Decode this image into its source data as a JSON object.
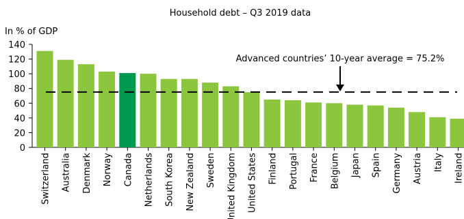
{
  "chart_data": {
    "type": "bar",
    "title": "Household debt – Q3 2019 data",
    "ylabel": "In % of GDP",
    "xlabel": "",
    "ylim": [
      0,
      140
    ],
    "yticks": [
      "0",
      "20",
      "40",
      "60",
      "80",
      "100",
      "120",
      "140"
    ],
    "grid": false,
    "categories": [
      "Switzerland",
      "Australia",
      "Denmark",
      "Norway",
      "Canada",
      "Netherlands",
      "South Korea",
      "New Zealand",
      "Sweden",
      "United Kingdom",
      "United States",
      "Finland",
      "Portugal",
      "France",
      "Belgium",
      "Japan",
      "Spain",
      "Germany",
      "Austria",
      "Italy",
      "Ireland"
    ],
    "values": [
      131,
      119,
      113,
      103,
      101,
      100,
      93,
      93,
      88,
      83,
      75,
      65,
      64,
      61,
      60,
      58,
      57,
      54,
      48,
      41,
      39
    ],
    "bar_color": "#8cc63e",
    "highlight_category": "Canada",
    "highlight_color": "#009a4e",
    "reference_line": {
      "value": 75.2,
      "label": "Advanced countries’ 10-year average = 75.2%",
      "style": "dashed"
    }
  }
}
